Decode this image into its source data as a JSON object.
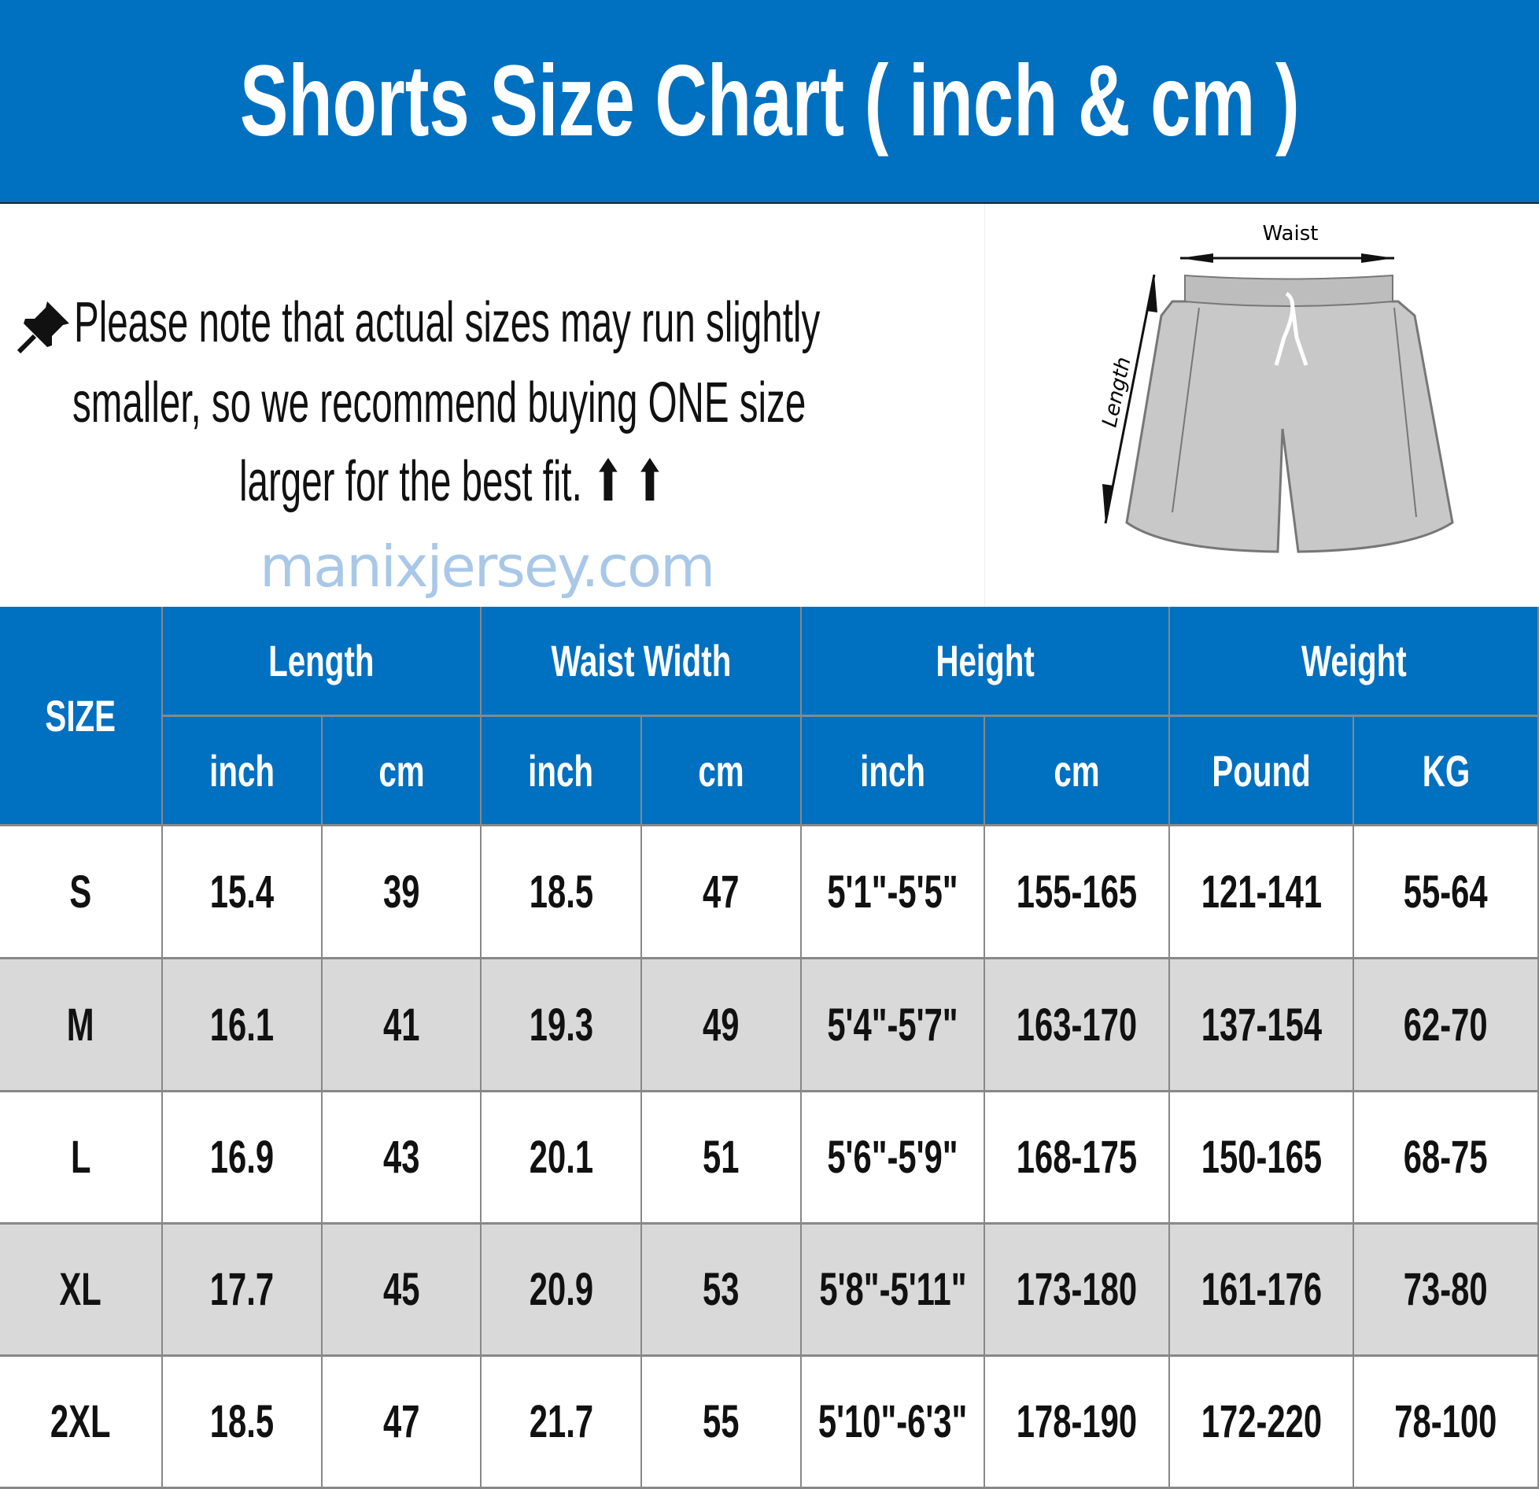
{
  "title": "Shorts Size Chart ( inch & cm )",
  "note": {
    "icon": "pushpin-icon",
    "lines": [
      "Please note that actual sizes may run slightly",
      "smaller, so we recommend buying ONE size",
      "larger for the best fit. ⬆ ⬆"
    ]
  },
  "diagram": {
    "waist_label": "Waist",
    "length_label": "Length"
  },
  "watermark": "manixjersey.com",
  "colors": {
    "header": "#0070c0",
    "alt_row": "#d9d9d9"
  },
  "table": {
    "size_header": "SIZE",
    "groups": [
      "Length",
      "Waist Width",
      "Height",
      "Weight"
    ],
    "subheaders": [
      "inch",
      "cm",
      "inch",
      "cm",
      "inch",
      "cm",
      "Pound",
      "KG"
    ],
    "rows": [
      [
        "S",
        "15.4",
        "39",
        "18.5",
        "47",
        "5'1\"-5'5\"",
        "155-165",
        "121-141",
        "55-64"
      ],
      [
        "M",
        "16.1",
        "41",
        "19.3",
        "49",
        "5'4\"-5'7\"",
        "163-170",
        "137-154",
        "62-70"
      ],
      [
        "L",
        "16.9",
        "43",
        "20.1",
        "51",
        "5'6\"-5'9\"",
        "168-175",
        "150-165",
        "68-75"
      ],
      [
        "XL",
        "17.7",
        "45",
        "20.9",
        "53",
        "5'8\"-5'11\"",
        "173-180",
        "161-176",
        "73-80"
      ],
      [
        "2XL",
        "18.5",
        "47",
        "21.7",
        "55",
        "5'10\"-6'3\"",
        "178-190",
        "172-220",
        "78-100"
      ]
    ]
  }
}
